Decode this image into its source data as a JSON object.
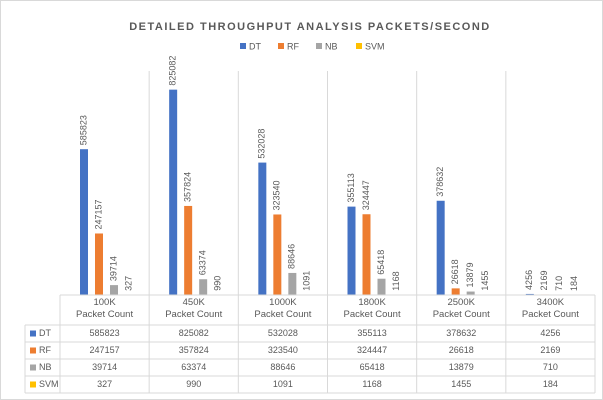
{
  "chart_data": {
    "type": "bar",
    "title": "DETAILED THROUGHPUT ANALYSIS PACKETS/SECOND",
    "categories": [
      "100K\nPacket Count",
      "450K\nPacket Count",
      "1000K\nPacket Count",
      "1800K\nPacket Count",
      "2500K\nPacket Count",
      "3400K\nPacket Count"
    ],
    "series": [
      {
        "name": "DT",
        "color": "#4472c4",
        "values": [
          585823,
          825082,
          532028,
          355113,
          378632,
          4256
        ]
      },
      {
        "name": "RF",
        "color": "#ed7d31",
        "values": [
          247157,
          357824,
          323540,
          324447,
          26618,
          2169
        ]
      },
      {
        "name": "NB",
        "color": "#a5a5a5",
        "values": [
          39714,
          63374,
          88646,
          65418,
          13879,
          710
        ]
      },
      {
        "name": "SVM",
        "color": "#ffc000",
        "values": [
          327,
          990,
          1091,
          1168,
          1455,
          184
        ]
      }
    ],
    "ylim": [
      0,
      900000
    ],
    "legend": "top",
    "data_table": true
  }
}
